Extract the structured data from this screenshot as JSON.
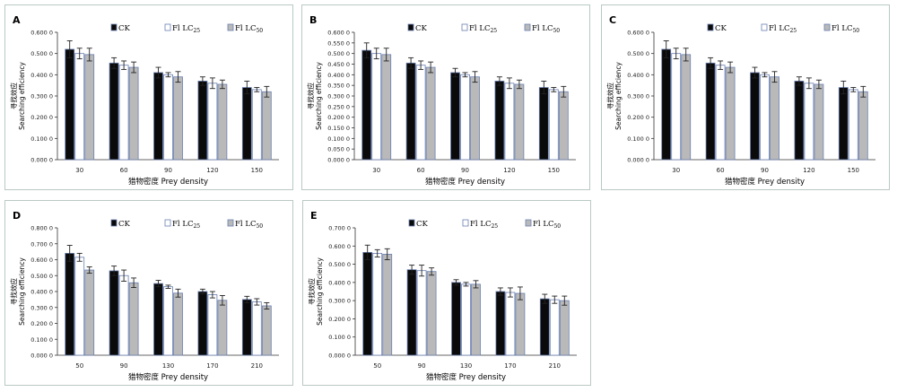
{
  "legend": [
    "CK",
    "Fl LC25",
    "Fl LC50"
  ],
  "colors": {
    "ck": "#0a0a0a",
    "lc25": "#ffffff",
    "lc50": "#b9b9b9",
    "stroke": "#6a7fb0",
    "axis": "#333333",
    "panel_border": "#b9c9c2"
  },
  "ylabel_cn": "寻找效应",
  "ylabel_en": "Searching efficiency",
  "xlabel": "猎物密度 Prey density",
  "chart_data": [
    {
      "panel": "A",
      "type": "bar",
      "categories": [
        "30",
        "60",
        "90",
        "120",
        "150"
      ],
      "ylim": [
        0,
        0.6
      ],
      "yticks": [
        "0.000 0",
        "0.100 0",
        "0.200 0",
        "0.300 0",
        "0.400 0",
        "0.500 0",
        "0.600 0"
      ],
      "series": [
        {
          "name": "CK",
          "values": [
            0.52,
            0.455,
            0.41,
            0.37,
            0.34
          ],
          "errors": [
            0.04,
            0.025,
            0.025,
            0.02,
            0.03
          ]
        },
        {
          "name": "Fl LC25",
          "values": [
            0.5,
            0.445,
            0.4,
            0.36,
            0.33
          ],
          "errors": [
            0.025,
            0.02,
            0.01,
            0.025,
            0.01
          ]
        },
        {
          "name": "Fl LC50",
          "values": [
            0.495,
            0.435,
            0.39,
            0.355,
            0.32
          ],
          "errors": [
            0.03,
            0.025,
            0.025,
            0.02,
            0.025
          ]
        }
      ]
    },
    {
      "panel": "B",
      "type": "bar",
      "categories": [
        "30",
        "60",
        "90",
        "120",
        "150"
      ],
      "ylim": [
        0,
        0.6
      ],
      "yticks": [
        "0.000 0",
        "0.050 0",
        "0.100 0",
        "0.150 0",
        "0.200 0",
        "0.250 0",
        "0.300 0",
        "0.350 0",
        "0.400 0",
        "0.450 0",
        "0.500 0",
        "0.550 0",
        "0.600 0"
      ],
      "series": [
        {
          "name": "CK",
          "values": [
            0.515,
            0.455,
            0.41,
            0.37,
            0.34
          ],
          "errors": [
            0.035,
            0.025,
            0.02,
            0.02,
            0.03
          ]
        },
        {
          "name": "Fl LC25",
          "values": [
            0.5,
            0.445,
            0.4,
            0.36,
            0.33
          ],
          "errors": [
            0.025,
            0.02,
            0.01,
            0.025,
            0.01
          ]
        },
        {
          "name": "Fl LC50",
          "values": [
            0.495,
            0.435,
            0.39,
            0.355,
            0.32
          ],
          "errors": [
            0.03,
            0.025,
            0.025,
            0.02,
            0.025
          ]
        }
      ]
    },
    {
      "panel": "C",
      "type": "bar",
      "categories": [
        "30",
        "60",
        "90",
        "120",
        "150"
      ],
      "ylim": [
        0,
        0.6
      ],
      "yticks": [
        "0.000 0",
        "0.100 0",
        "0.200 0",
        "0.300 0",
        "0.400 0",
        "0.500 0",
        "0.600 0"
      ],
      "series": [
        {
          "name": "CK",
          "values": [
            0.52,
            0.455,
            0.41,
            0.37,
            0.34
          ],
          "errors": [
            0.04,
            0.025,
            0.025,
            0.02,
            0.03
          ]
        },
        {
          "name": "Fl LC25",
          "values": [
            0.5,
            0.445,
            0.4,
            0.36,
            0.33
          ],
          "errors": [
            0.025,
            0.02,
            0.01,
            0.025,
            0.01
          ]
        },
        {
          "name": "Fl LC50",
          "values": [
            0.495,
            0.435,
            0.39,
            0.355,
            0.32
          ],
          "errors": [
            0.03,
            0.025,
            0.025,
            0.02,
            0.025
          ]
        }
      ]
    },
    {
      "panel": "D",
      "type": "bar",
      "categories": [
        "50",
        "90",
        "130",
        "170",
        "210"
      ],
      "ylim": [
        0,
        0.8
      ],
      "yticks": [
        "0.000 0",
        "0.100 0",
        "0.200 0",
        "0.300 0",
        "0.400 0",
        "0.500 0",
        "0.600 0",
        "0.700 0",
        "0.800 0"
      ],
      "series": [
        {
          "name": "CK",
          "values": [
            0.64,
            0.53,
            0.45,
            0.4,
            0.35
          ],
          "errors": [
            0.05,
            0.03,
            0.02,
            0.015,
            0.02
          ]
        },
        {
          "name": "Fl LC25",
          "values": [
            0.615,
            0.5,
            0.43,
            0.38,
            0.335
          ],
          "errors": [
            0.025,
            0.035,
            0.01,
            0.02,
            0.02
          ]
        },
        {
          "name": "Fl LC50",
          "values": [
            0.535,
            0.455,
            0.39,
            0.345,
            0.31
          ],
          "errors": [
            0.02,
            0.03,
            0.025,
            0.03,
            0.02
          ]
        }
      ]
    },
    {
      "panel": "E",
      "type": "bar",
      "categories": [
        "50",
        "90",
        "130",
        "170",
        "210"
      ],
      "ylim": [
        0,
        0.7
      ],
      "yticks": [
        "0.000 0",
        "0.100 0",
        "0.200 0",
        "0.300 0",
        "0.400 0",
        "0.500 0",
        "0.600 0",
        "0.700 0"
      ],
      "series": [
        {
          "name": "CK",
          "values": [
            0.565,
            0.47,
            0.4,
            0.35,
            0.31
          ],
          "errors": [
            0.04,
            0.025,
            0.015,
            0.02,
            0.025
          ]
        },
        {
          "name": "Fl LC25",
          "values": [
            0.56,
            0.465,
            0.39,
            0.345,
            0.305
          ],
          "errors": [
            0.02,
            0.03,
            0.01,
            0.025,
            0.02
          ]
        },
        {
          "name": "Fl LC50",
          "values": [
            0.555,
            0.46,
            0.39,
            0.34,
            0.3
          ],
          "errors": [
            0.03,
            0.02,
            0.02,
            0.035,
            0.025
          ]
        }
      ]
    }
  ]
}
